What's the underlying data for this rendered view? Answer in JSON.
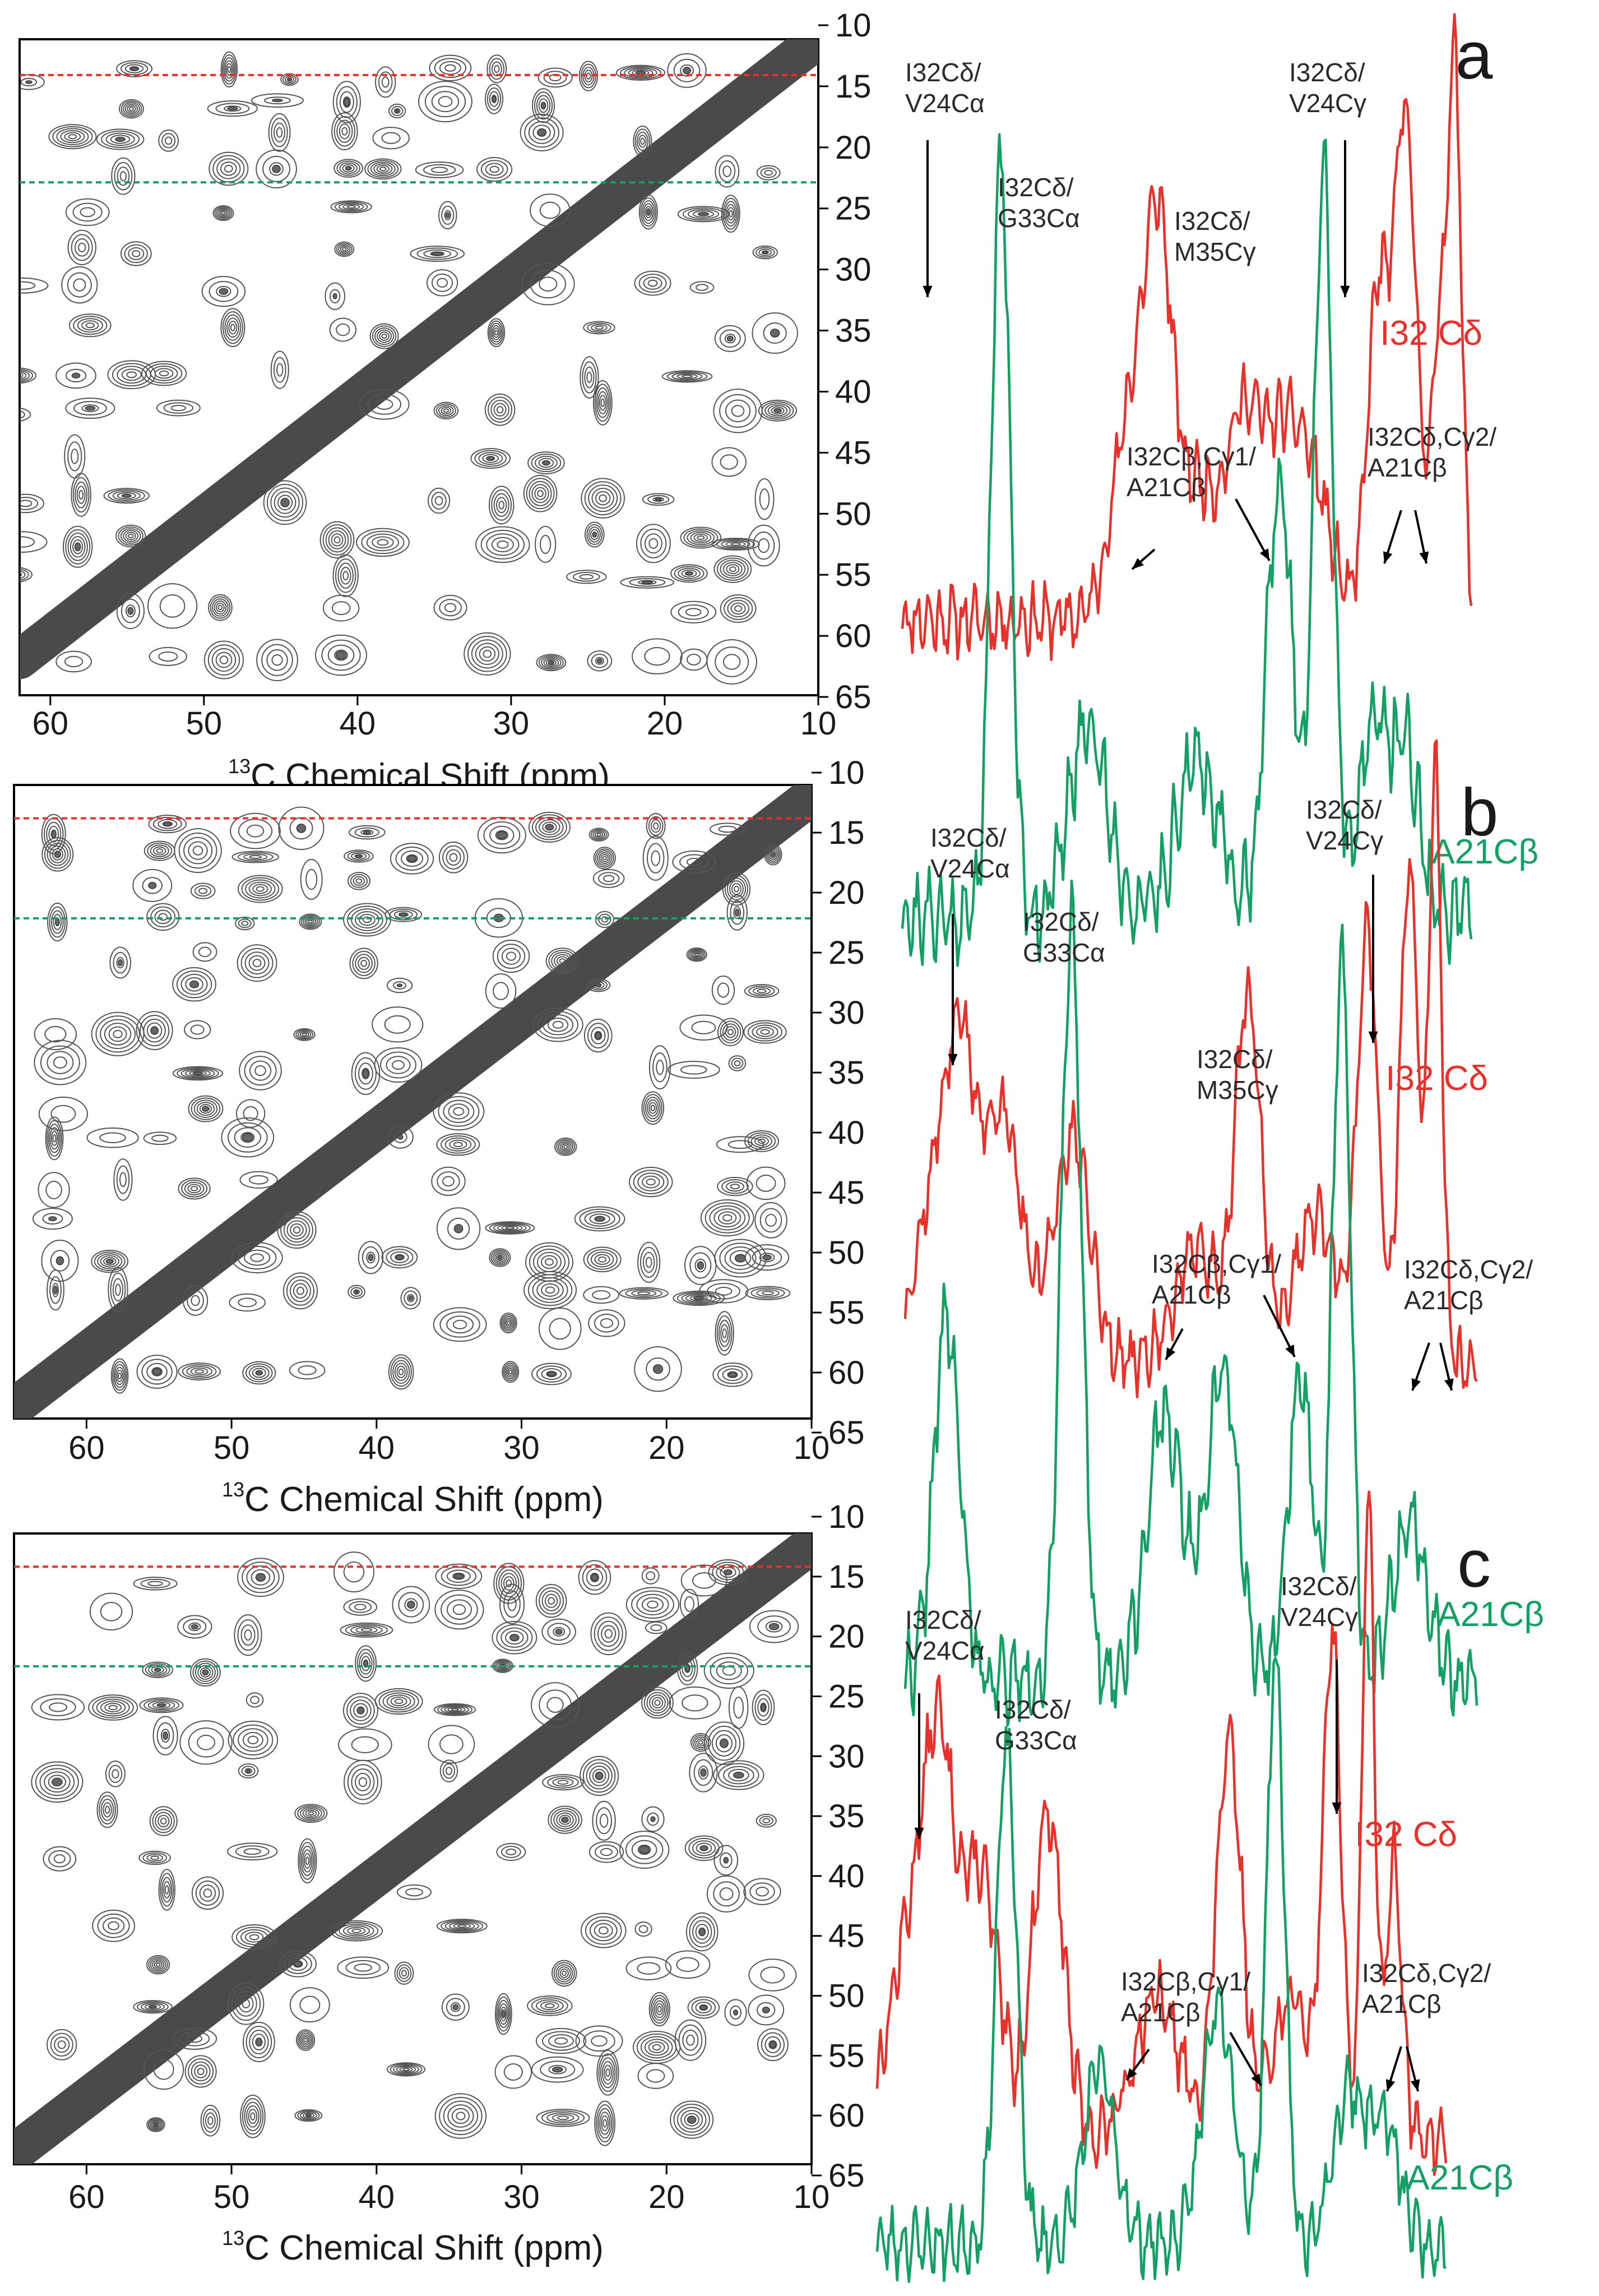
{
  "chart_data": [
    {
      "panel": "a",
      "type": "contour-2d-with-1d-slices",
      "xlabel_prefix": "13",
      "xlabel": "C Chemical Shift (ppm)",
      "x_ticks": [
        "60",
        "50",
        "40",
        "30",
        "20",
        "10"
      ],
      "y_ticks": [
        "10",
        "15",
        "20",
        "25",
        "30",
        "35",
        "40",
        "45",
        "50",
        "55",
        "60",
        "65"
      ],
      "xlim": [
        62,
        10
      ],
      "ylim": [
        10,
        65
      ],
      "slice_ppm": {
        "red": 13,
        "green": 22
      },
      "series": [
        {
          "name": "I32 Cδ",
          "color": "#e8312a"
        },
        {
          "name": "A21Cβ",
          "color": "#14a064"
        }
      ],
      "annotations": [
        {
          "l1": "I32Cδ/",
          "l2": "V24Cα"
        },
        {
          "l1": "I32Cδ/",
          "l2": "G33Cα"
        },
        {
          "l1": "I32Cδ/",
          "l2": "M35Cγ"
        },
        {
          "l1": "I32Cδ/",
          "l2": "V24Cγ"
        },
        {
          "l1": "I32Cβ,Cγ1/",
          "l2": "A21Cβ"
        },
        {
          "l1": "I32Cδ,Cγ2/",
          "l2": "A21Cβ"
        }
      ]
    },
    {
      "panel": "b",
      "type": "contour-2d-with-1d-slices",
      "xlabel_prefix": "13",
      "xlabel": "C Chemical Shift (ppm)",
      "x_ticks": [
        "60",
        "50",
        "40",
        "30",
        "20",
        "10"
      ],
      "y_ticks": [
        "10",
        "15",
        "20",
        "25",
        "30",
        "35",
        "40",
        "45",
        "50",
        "55",
        "60",
        "65"
      ],
      "xlim": [
        65,
        10
      ],
      "ylim": [
        9,
        66
      ],
      "slice_ppm": {
        "red": 12,
        "green": 21
      },
      "series": [
        {
          "name": "I32 Cδ",
          "color": "#e8312a"
        },
        {
          "name": "A21Cβ",
          "color": "#14a064"
        }
      ],
      "annotations": [
        {
          "l1": "I32Cδ/",
          "l2": "V24Cα"
        },
        {
          "l1": "I32Cδ/",
          "l2": "G33Cα"
        },
        {
          "l1": "I32Cδ/",
          "l2": "M35Cγ"
        },
        {
          "l1": "I32Cδ/",
          "l2": "V24Cγ"
        },
        {
          "l1": "I32Cβ,Cγ1/",
          "l2": "A21Cβ"
        },
        {
          "l1": "I32Cδ,Cγ2/",
          "l2": "A21Cβ"
        }
      ]
    },
    {
      "panel": "c",
      "type": "contour-2d-with-1d-slices",
      "xlabel_prefix": "13",
      "xlabel": "C Chemical Shift (ppm)",
      "x_ticks": [
        "60",
        "50",
        "40",
        "30",
        "20",
        "10"
      ],
      "y_ticks": [
        "10",
        "15",
        "20",
        "25",
        "30",
        "35",
        "40",
        "45",
        "50",
        "55",
        "60",
        "65"
      ],
      "xlim": [
        65,
        10
      ],
      "ylim": [
        9,
        66
      ],
      "slice_ppm": {
        "red": 12,
        "green": 21
      },
      "series": [
        {
          "name": "I32 Cδ",
          "color": "#e8312a"
        },
        {
          "name": "A21Cβ",
          "color": "#14a064"
        }
      ],
      "annotations": [
        {
          "l1": "I32Cδ/",
          "l2": "V24Cα"
        },
        {
          "l1": "I32Cδ/",
          "l2": "G33Cα"
        },
        {
          "l1": "I32Cδ/",
          "l2": "V24Cγ"
        },
        {
          "l1": "I32Cβ,Cγ1/",
          "l2": "A21Cβ"
        },
        {
          "l1": "I32Cδ,Cγ2/",
          "l2": "A21Cβ"
        }
      ]
    }
  ]
}
